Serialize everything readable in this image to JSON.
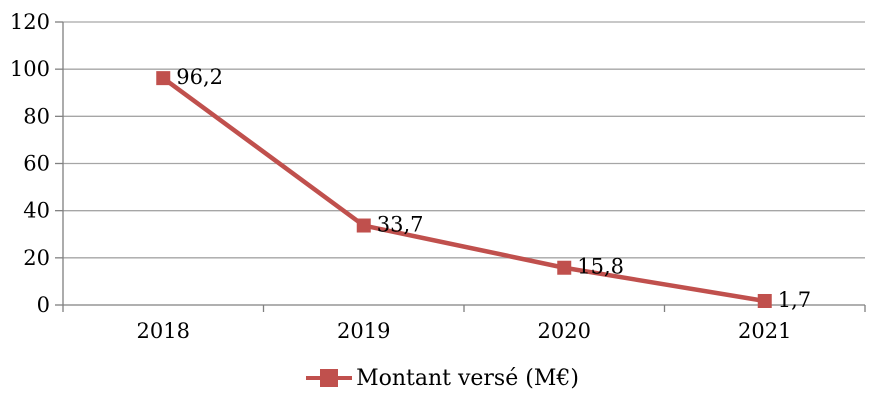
{
  "chart_data": {
    "type": "line",
    "title": "",
    "categories": [
      "2018",
      "2019",
      "2020",
      "2021"
    ],
    "series": [
      {
        "name": "Montant versé (M€)",
        "values": [
          96.2,
          33.7,
          15.8,
          1.7
        ],
        "point_labels": [
          "96,2",
          "33,7",
          "15,8",
          "1,7"
        ],
        "color": "#C0504D",
        "marker": "square"
      }
    ],
    "ylim": [
      0,
      120
    ],
    "ytick_step": 20,
    "ytick_labels": [
      "0",
      "20",
      "40",
      "60",
      "80",
      "100",
      "120"
    ],
    "grid": true,
    "legend_position": "bottom"
  },
  "colors": {
    "series": "#C0504D",
    "gridline": "#A6A6A6",
    "axis": "#808080",
    "text": "#000000",
    "background": "#FFFFFF"
  }
}
